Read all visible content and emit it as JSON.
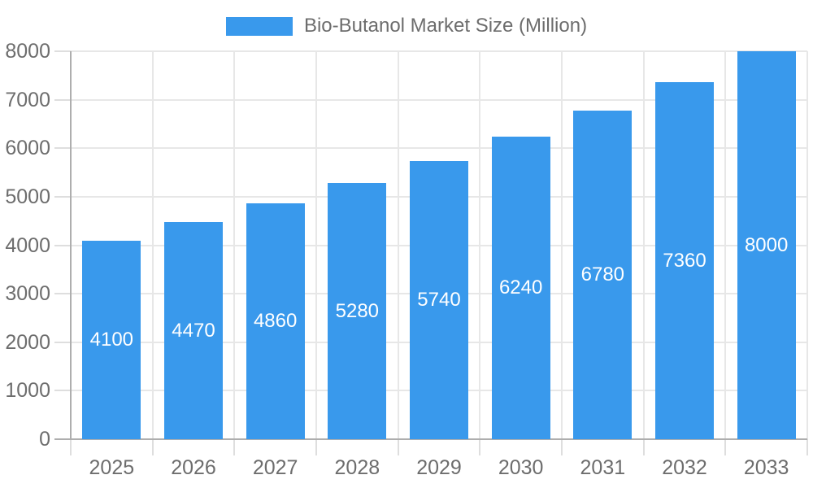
{
  "chart_data": {
    "type": "bar",
    "title": "Bio-Butanol Market Size (Million)",
    "series": [
      {
        "name": "Bio-Butanol Market Size (Million)",
        "values": [
          4100,
          4470,
          4860,
          5280,
          5740,
          6240,
          6780,
          7360,
          8000
        ]
      }
    ],
    "categories": [
      "2025",
      "2026",
      "2027",
      "2028",
      "2029",
      "2030",
      "2031",
      "2032",
      "2033"
    ],
    "values": [
      4100,
      4470,
      4860,
      5280,
      5740,
      6240,
      6780,
      7360,
      8000
    ],
    "value_labels": [
      "4100",
      "4470",
      "4860",
      "5280",
      "5740",
      "6240",
      "6780",
      "7360",
      "8000"
    ],
    "xlabel": "",
    "ylabel": "",
    "ylim": [
      0,
      8000
    ],
    "ytick_step": 1000,
    "ytick_labels": [
      "0",
      "1000",
      "2000",
      "3000",
      "4000",
      "5000",
      "6000",
      "7000",
      "8000"
    ],
    "grid": true,
    "legend_position": "top",
    "value_label_position": "inside-center",
    "colors": {
      "bar": "#3999EC",
      "grid_line": "#e7e7e7",
      "tick_line": "#dedede",
      "axis_line": "#aeaeae",
      "label_text": "#6d6d6d",
      "value_label_text": "#ffffff",
      "background": "#ffffff"
    }
  }
}
